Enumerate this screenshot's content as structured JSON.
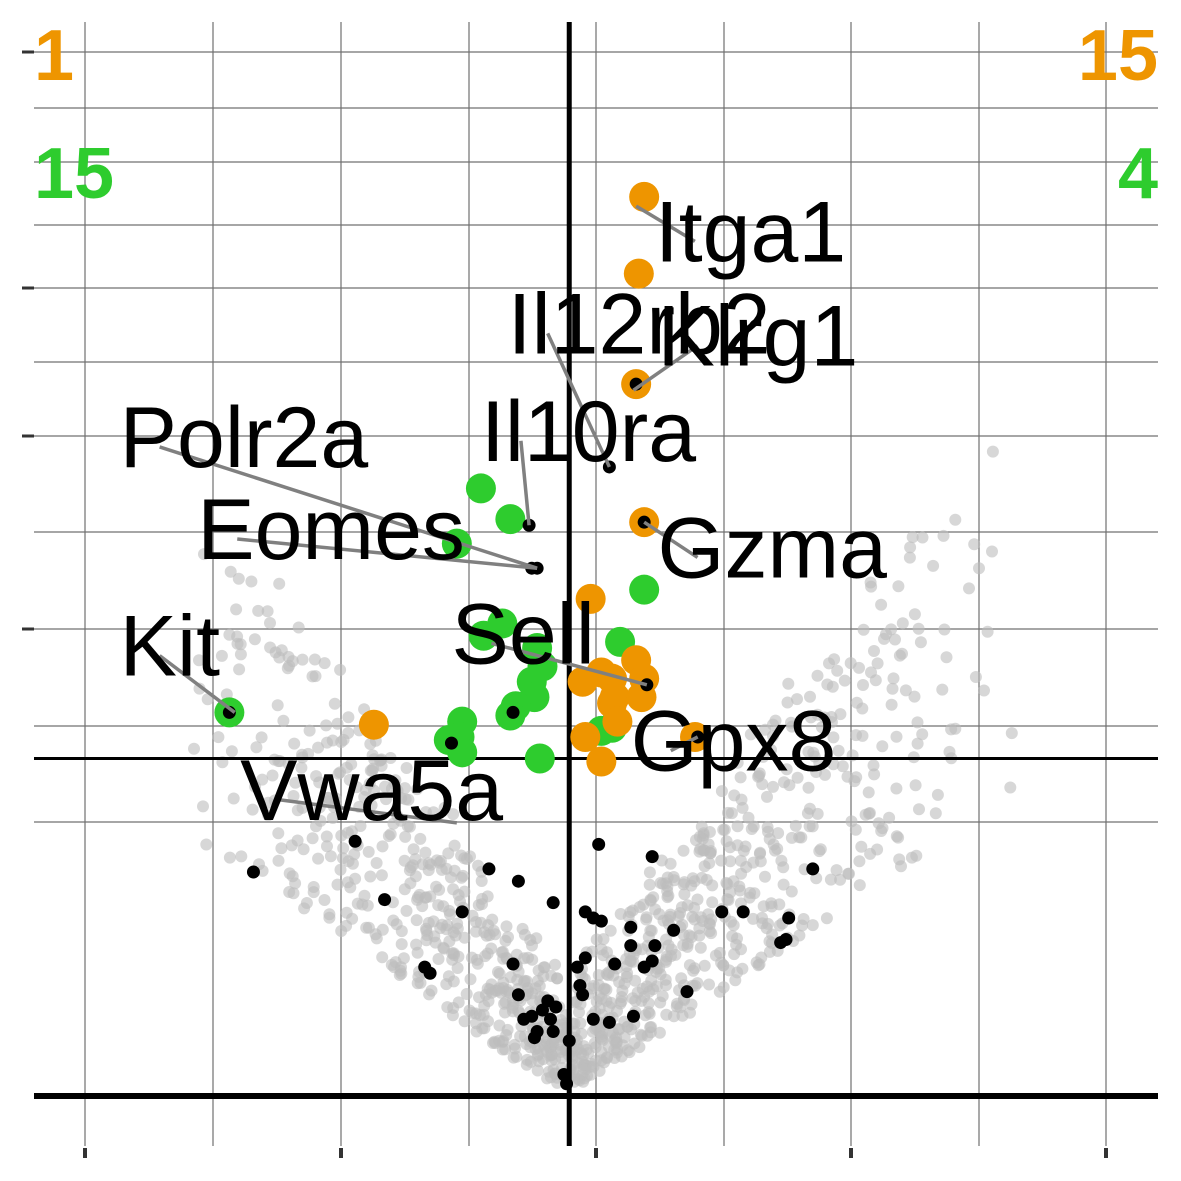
{
  "chart_data": {
    "type": "scatter",
    "title": "",
    "xlabel": "",
    "ylabel": "",
    "xlim": [
      -2.0,
      2.2
    ],
    "ylim": [
      0,
      3.5
    ],
    "grid": true,
    "thresholds": {
      "x": 0,
      "y": 1.1
    },
    "corner_counts": {
      "orange_left": "1",
      "orange_right": "15",
      "green_left": "15",
      "green_right": "4"
    },
    "colors": {
      "orange": "#ee9500",
      "green": "#2ecc2e",
      "background_points": "#bdbdbd",
      "highlight": "#000000",
      "leader": "#808080"
    },
    "labeled_genes": [
      {
        "name": "Itga1",
        "x": 0.25,
        "y": 2.9,
        "color": "orange",
        "label_x": 0.32,
        "label_y": 2.72
      },
      {
        "name": "Klrg1",
        "x": 0.24,
        "y": 2.3,
        "color": "orange",
        "label_x": 0.33,
        "label_y": 2.38
      },
      {
        "name": "Il12rb2",
        "x": 0.15,
        "y": 2.05,
        "color": "black",
        "label_x": -0.23,
        "label_y": 2.42
      },
      {
        "name": "Il10ra",
        "x": -0.15,
        "y": 1.86,
        "color": "black",
        "label_x": -0.33,
        "label_y": 2.07
      },
      {
        "name": "Polr2a",
        "x": -0.12,
        "y": 1.72,
        "color": "black",
        "label_x": -1.68,
        "label_y": 2.05
      },
      {
        "name": "Eomes",
        "x": -0.12,
        "y": 1.72,
        "color": "black",
        "label_x": -1.39,
        "label_y": 1.75
      },
      {
        "name": "Gzma",
        "x": 0.28,
        "y": 1.87,
        "color": "orange",
        "label_x": 0.33,
        "label_y": 1.69
      },
      {
        "name": "Sell",
        "x": 0.29,
        "y": 1.34,
        "color": "black",
        "label_x": -0.44,
        "label_y": 1.41
      },
      {
        "name": "Kit",
        "x": -1.25,
        "y": 1.25,
        "color": "green",
        "label_x": -1.68,
        "label_y": 1.37
      },
      {
        "name": "Gpx8",
        "x": 0.48,
        "y": 1.17,
        "color": "orange",
        "label_x": 0.23,
        "label_y": 1.06
      },
      {
        "name": "Vwa5a",
        "x": -0.42,
        "y": 0.89,
        "color": "black",
        "label_x": -1.23,
        "label_y": 0.9
      }
    ],
    "orange_points": [
      [
        0.28,
        2.93
      ],
      [
        0.26,
        2.68
      ],
      [
        0.25,
        2.32
      ],
      [
        0.28,
        1.87
      ],
      [
        0.08,
        1.62
      ],
      [
        0.25,
        1.42
      ],
      [
        0.12,
        1.38
      ],
      [
        0.16,
        1.36
      ],
      [
        0.28,
        1.36
      ],
      [
        0.16,
        1.28
      ],
      [
        0.17,
        1.3
      ],
      [
        0.18,
        1.22
      ],
      [
        0.47,
        1.17
      ],
      [
        0.06,
        1.17
      ],
      [
        0.12,
        1.09
      ],
      [
        -0.73,
        1.21
      ],
      [
        0.05,
        1.35
      ],
      [
        0.27,
        1.3
      ]
    ],
    "green_points": [
      [
        -0.33,
        1.98
      ],
      [
        -0.22,
        1.88
      ],
      [
        -0.42,
        1.8
      ],
      [
        -0.25,
        1.54
      ],
      [
        -0.32,
        1.5
      ],
      [
        -0.12,
        1.46
      ],
      [
        -0.1,
        1.4
      ],
      [
        -0.14,
        1.35
      ],
      [
        -0.13,
        1.3
      ],
      [
        -0.2,
        1.27
      ],
      [
        -0.22,
        1.24
      ],
      [
        -0.4,
        1.22
      ],
      [
        -0.41,
        1.17
      ],
      [
        -0.4,
        1.12
      ],
      [
        -0.45,
        1.16
      ],
      [
        -0.11,
        1.1
      ],
      [
        0.12,
        1.19
      ],
      [
        0.16,
        1.2
      ],
      [
        0.19,
        1.48
      ],
      [
        0.28,
        1.65
      ],
      [
        -1.27,
        1.25
      ]
    ],
    "black_points": [
      [
        0.15,
        2.05
      ],
      [
        0.25,
        2.32
      ],
      [
        0.28,
        1.87
      ],
      [
        -0.15,
        1.86
      ],
      [
        -0.12,
        1.72
      ],
      [
        -0.14,
        1.72
      ],
      [
        0.29,
        1.34
      ],
      [
        0.48,
        1.17
      ],
      [
        -0.21,
        1.25
      ],
      [
        -0.44,
        1.15
      ],
      [
        -1.27,
        1.25
      ],
      [
        -0.8,
        0.83
      ],
      [
        0.11,
        0.82
      ],
      [
        0.31,
        0.78
      ],
      [
        0.91,
        0.74
      ],
      [
        -1.18,
        0.73
      ],
      [
        -0.3,
        0.74
      ],
      [
        -0.19,
        0.7
      ],
      [
        -0.69,
        0.64
      ],
      [
        -0.4,
        0.6
      ],
      [
        -0.06,
        0.63
      ],
      [
        0.06,
        0.6
      ],
      [
        0.09,
        0.58
      ],
      [
        0.12,
        0.57
      ],
      [
        0.23,
        0.55
      ],
      [
        0.39,
        0.54
      ],
      [
        0.57,
        0.6
      ],
      [
        0.65,
        0.6
      ],
      [
        0.82,
        0.58
      ],
      [
        0.81,
        0.51
      ],
      [
        0.79,
        0.5
      ],
      [
        0.23,
        0.49
      ],
      [
        0.32,
        0.49
      ],
      [
        0.17,
        0.43
      ],
      [
        0.06,
        0.45
      ],
      [
        0.03,
        0.42
      ],
      [
        0.28,
        0.42
      ],
      [
        0.31,
        0.44
      ],
      [
        -0.54,
        0.42
      ],
      [
        -0.52,
        0.4
      ],
      [
        -0.21,
        0.43
      ],
      [
        0.44,
        0.34
      ],
      [
        0.04,
        0.36
      ],
      [
        0.05,
        0.33
      ],
      [
        -0.19,
        0.33
      ],
      [
        -0.08,
        0.31
      ],
      [
        -0.1,
        0.28
      ],
      [
        -0.05,
        0.29
      ],
      [
        -0.14,
        0.26
      ],
      [
        -0.17,
        0.25
      ],
      [
        -0.07,
        0.25
      ],
      [
        0.09,
        0.25
      ],
      [
        0.15,
        0.24
      ],
      [
        0.24,
        0.26
      ],
      [
        -0.12,
        0.21
      ],
      [
        -0.06,
        0.21
      ],
      [
        -0.13,
        0.19
      ],
      [
        0.0,
        0.18
      ],
      [
        -0.02,
        0.07
      ],
      [
        -0.01,
        0.04
      ]
    ]
  }
}
